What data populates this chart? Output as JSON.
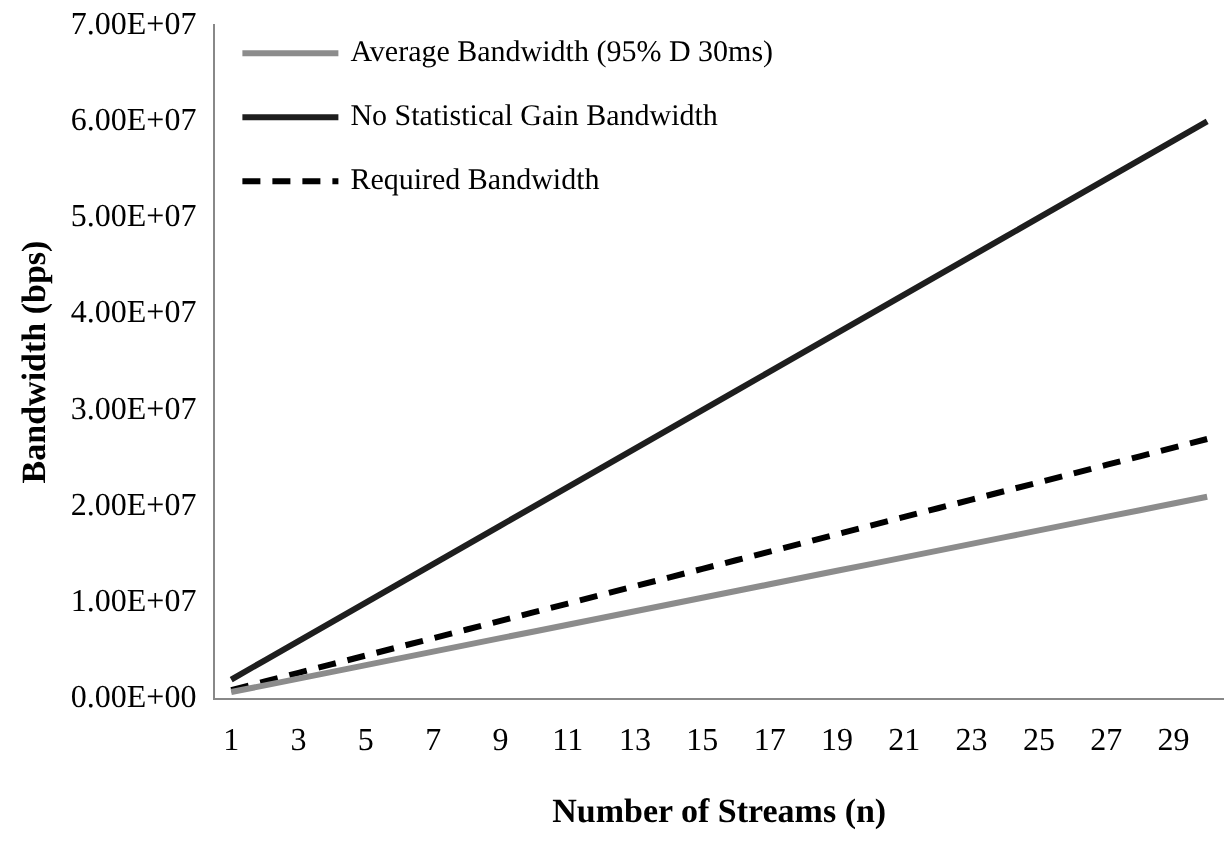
{
  "chart_data": {
    "type": "line",
    "xlabel": "Number of Streams (n)",
    "ylabel": "Bandwidth (bps)",
    "x": [
      1,
      2,
      3,
      4,
      5,
      6,
      7,
      8,
      9,
      10,
      11,
      12,
      13,
      14,
      15,
      16,
      17,
      18,
      19,
      20,
      21,
      22,
      23,
      24,
      25,
      26,
      27,
      28,
      29,
      30
    ],
    "xlim": [
      0.5,
      30.5
    ],
    "xticks": [
      1,
      3,
      5,
      7,
      9,
      11,
      13,
      15,
      17,
      19,
      21,
      23,
      25,
      27,
      29
    ],
    "series": [
      {
        "name": "Average Bandwidth (95% D 30ms)",
        "color": "#8c8c8c",
        "line_style": "solid",
        "values": [
          700000,
          1400000,
          2100000,
          2800000,
          3500000,
          4200000,
          4900000,
          5600000,
          6300000,
          7000000,
          7700000,
          8400000,
          9100000,
          9800000,
          10500000,
          11200000,
          11900000,
          12600000,
          13300000,
          14000000,
          14700000,
          15400000,
          16100000,
          16800000,
          17500000,
          18200000,
          18900000,
          19600000,
          20300000,
          21000000
        ]
      },
      {
        "name": "No Statistical Gain Bandwidth",
        "color": "#1e1e1e",
        "line_style": "solid",
        "values": [
          2000000,
          4000000,
          6000000,
          8000000,
          10000000,
          12000000,
          14000000,
          16000000,
          18000000,
          20000000,
          22000000,
          24000000,
          26000000,
          28000000,
          30000000,
          32000000,
          34000000,
          36000000,
          38000000,
          40000000,
          42000000,
          44000000,
          46000000,
          48000000,
          50000000,
          52000000,
          54000000,
          56000000,
          58000000,
          60000000
        ]
      },
      {
        "name": "Required Bandwidth",
        "color": "#000000",
        "line_style": "dashed",
        "values": [
          900000,
          1800000,
          2700000,
          3600000,
          4500000,
          5400000,
          6300000,
          7200000,
          8100000,
          9000000,
          9900000,
          10800000,
          11700000,
          12600000,
          13500000,
          14400000,
          15300000,
          16200000,
          17100000,
          18000000,
          18900000,
          19800000,
          20700000,
          21600000,
          22500000,
          23400000,
          24300000,
          25200000,
          26100000,
          27000000
        ]
      }
    ],
    "ylim": [
      0,
      70000000
    ],
    "yticks": [
      {
        "value": 0,
        "label": "0.00E+00"
      },
      {
        "value": 10000000,
        "label": "1.00E+07"
      },
      {
        "value": 20000000,
        "label": "2.00E+07"
      },
      {
        "value": 30000000,
        "label": "3.00E+07"
      },
      {
        "value": 40000000,
        "label": "4.00E+07"
      },
      {
        "value": 50000000,
        "label": "5.00E+07"
      },
      {
        "value": 60000000,
        "label": "6.00E+07"
      },
      {
        "value": 70000000,
        "label": "7.00E+07"
      }
    ],
    "grid": false,
    "legend": "top left",
    "marker": "none"
  }
}
